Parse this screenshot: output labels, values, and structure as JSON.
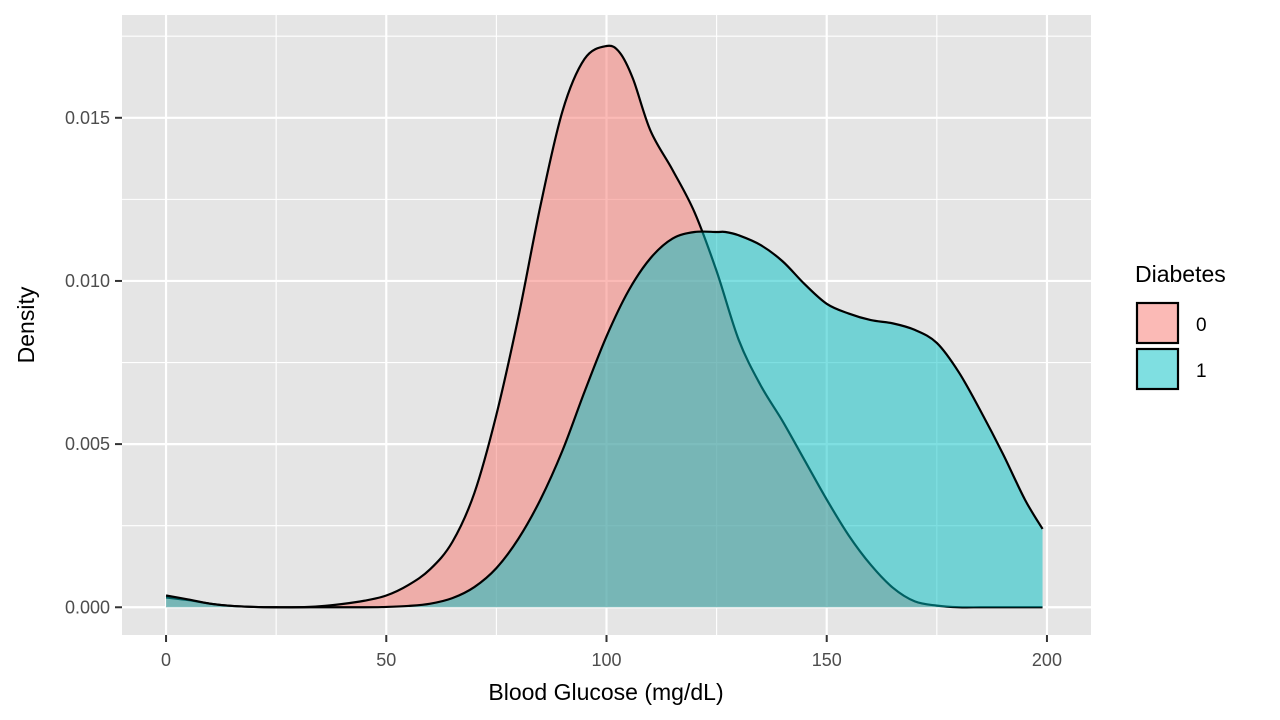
{
  "chart_data": {
    "type": "area",
    "subtype": "density",
    "xlabel": "Blood Glucose (mg/dL)",
    "ylabel": "Density",
    "xlim": [
      -10,
      210
    ],
    "ylim": [
      -0.00085,
      0.01815
    ],
    "x_ticks": [
      0,
      50,
      100,
      150,
      200
    ],
    "x_tick_labels": [
      "0",
      "50",
      "100",
      "150",
      "200"
    ],
    "y_ticks": [
      0,
      0.005,
      0.01,
      0.015
    ],
    "y_tick_labels": [
      "0.000",
      "0.005",
      "0.010",
      "0.015"
    ],
    "grid": true,
    "legend": {
      "title": "Diabetes",
      "position": "right"
    },
    "series": [
      {
        "name": "0",
        "color": "#F8766D",
        "x": [
          0,
          5,
          10,
          15,
          20,
          25,
          30,
          35,
          40,
          45,
          50,
          55,
          60,
          65,
          70,
          75,
          80,
          85,
          90,
          95,
          100,
          103,
          106,
          110,
          115,
          120,
          125,
          130,
          135,
          140,
          145,
          150,
          155,
          160,
          165,
          170,
          175,
          180,
          185,
          190,
          195,
          199
        ],
        "y": [
          0.0003,
          0.00022,
          0.00011,
          4e-05,
          1e-05,
          0.0,
          0.0,
          3e-05,
          0.0001,
          0.0002,
          0.00036,
          0.00068,
          0.00117,
          0.002,
          0.0035,
          0.0059,
          0.0089,
          0.0123,
          0.0152,
          0.0168,
          0.0172,
          0.017,
          0.0162,
          0.0146,
          0.0134,
          0.0121,
          0.0103,
          0.0082,
          0.0068,
          0.0057,
          0.0045,
          0.0033,
          0.0022,
          0.0013,
          0.0006,
          0.00018,
          5e-05,
          0.0,
          0.0,
          0.0,
          0.0,
          0.0
        ]
      },
      {
        "name": "1",
        "color": "#00BFC4",
        "x": [
          0,
          5,
          10,
          15,
          20,
          25,
          30,
          35,
          40,
          45,
          50,
          55,
          60,
          65,
          70,
          75,
          80,
          85,
          90,
          95,
          100,
          105,
          110,
          115,
          120,
          125,
          127,
          130,
          135,
          140,
          145,
          150,
          155,
          160,
          165,
          170,
          175,
          180,
          185,
          190,
          195,
          199
        ],
        "y": [
          0.00036,
          0.00024,
          0.00011,
          4e-05,
          1e-05,
          0.0,
          0.0,
          0.0,
          0.0,
          0.0,
          1e-05,
          4e-05,
          0.00011,
          0.00028,
          0.00062,
          0.0012,
          0.0021,
          0.0033,
          0.0048,
          0.0066,
          0.0083,
          0.0097,
          0.0107,
          0.0113,
          0.0115,
          0.0115,
          0.0115,
          0.0114,
          0.0111,
          0.0106,
          0.0099,
          0.0093,
          0.009,
          0.0088,
          0.0087,
          0.0085,
          0.0081,
          0.0072,
          0.006,
          0.0047,
          0.0033,
          0.0024
        ]
      }
    ]
  },
  "style": {
    "panel_background": "#E5E5E5",
    "grid_color": "#FFFFFF",
    "outline_color": "#000000"
  }
}
